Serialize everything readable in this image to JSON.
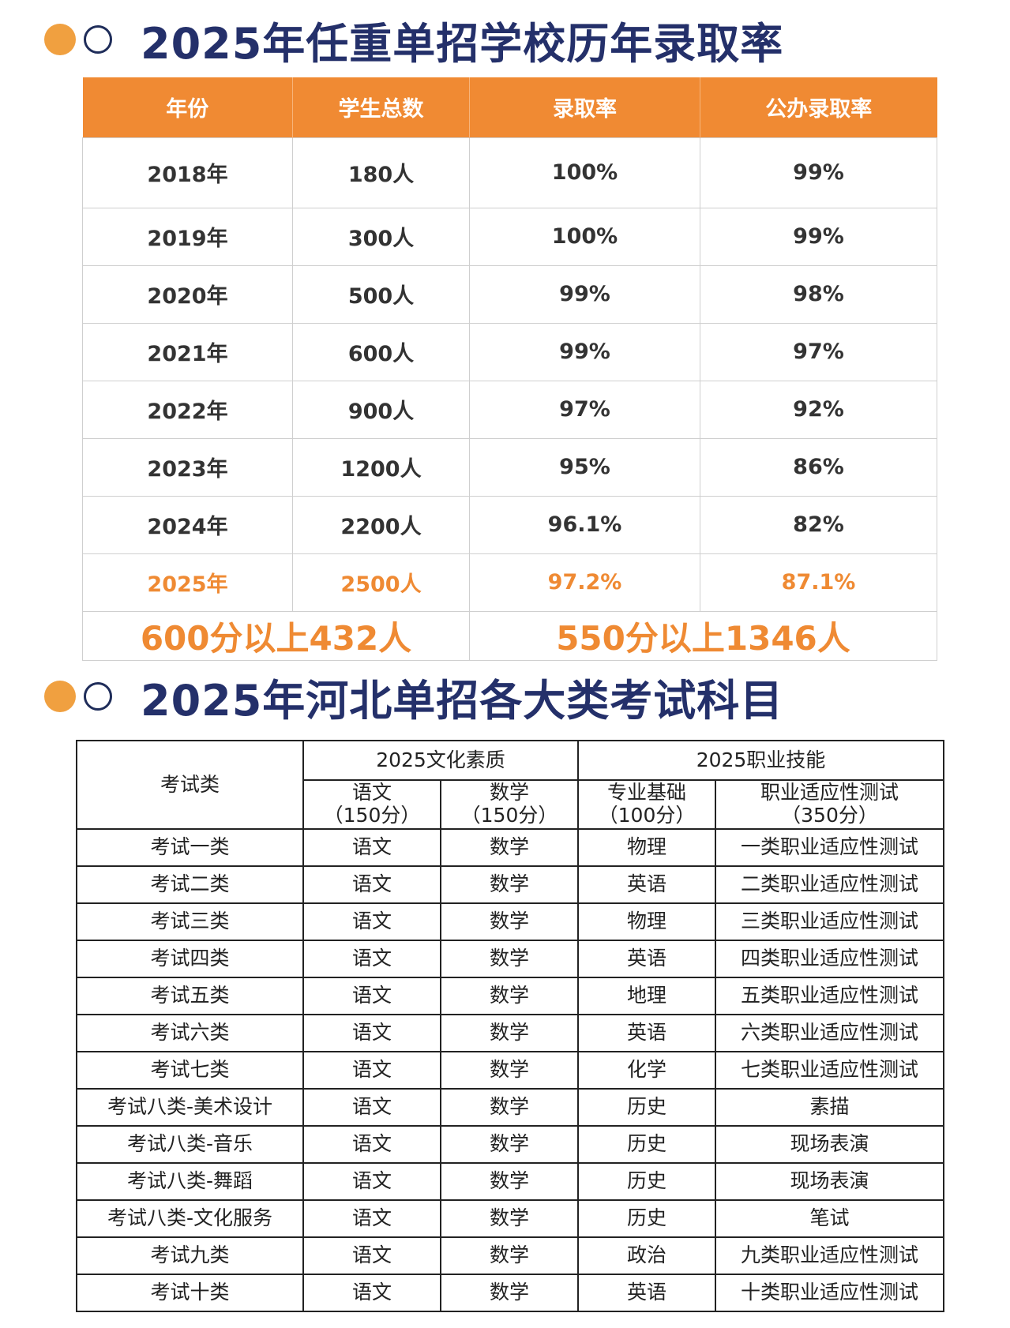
{
  "section1": {
    "title": "2025年任重单招学校历年录取率"
  },
  "table1": {
    "headers": [
      "年份",
      "学生总数",
      "录取率",
      "公办录取率"
    ],
    "rows": [
      [
        "2018年",
        "180人",
        "100%",
        "99%"
      ],
      [
        "2019年",
        "300人",
        "100%",
        "99%"
      ],
      [
        "2020年",
        "500人",
        "99%",
        "98%"
      ],
      [
        "2021年",
        "600人",
        "99%",
        "97%"
      ],
      [
        "2022年",
        "900人",
        "97%",
        "92%"
      ],
      [
        "2023年",
        "1200人",
        "95%",
        "86%"
      ],
      [
        "2024年",
        "2200人",
        "96.1%",
        "82%"
      ],
      [
        "2025年",
        "2500人",
        "97.2%",
        "87.1%"
      ]
    ],
    "summary": [
      "600分以上432人",
      "550分以上1346人"
    ]
  },
  "section2": {
    "title": "2025年河北单招各大类考试科目"
  },
  "table2": {
    "corner": "考试类",
    "group_culture": "2025文化素质",
    "group_skill": "2025职业技能",
    "subheaders": [
      {
        "name": "语文",
        "score": "（150分）"
      },
      {
        "name": "数学",
        "score": "（150分）"
      },
      {
        "name": "专业基础",
        "score": "（100分）"
      },
      {
        "name": "职业适应性测试",
        "score": "（350分）"
      }
    ],
    "rows": [
      [
        "考试一类",
        "语文",
        "数学",
        "物理",
        "一类职业适应性测试"
      ],
      [
        "考试二类",
        "语文",
        "数学",
        "英语",
        "二类职业适应性测试"
      ],
      [
        "考试三类",
        "语文",
        "数学",
        "物理",
        "三类职业适应性测试"
      ],
      [
        "考试四类",
        "语文",
        "数学",
        "英语",
        "四类职业适应性测试"
      ],
      [
        "考试五类",
        "语文",
        "数学",
        "地理",
        "五类职业适应性测试"
      ],
      [
        "考试六类",
        "语文",
        "数学",
        "英语",
        "六类职业适应性测试"
      ],
      [
        "考试七类",
        "语文",
        "数学",
        "化学",
        "七类职业适应性测试"
      ],
      [
        "考试八类-美术设计",
        "语文",
        "数学",
        "历史",
        "素描"
      ],
      [
        "考试八类-音乐",
        "语文",
        "数学",
        "历史",
        "现场表演"
      ],
      [
        "考试八类-舞蹈",
        "语文",
        "数学",
        "历史",
        "现场表演"
      ],
      [
        "考试八类-文化服务",
        "语文",
        "数学",
        "历史",
        "笔试"
      ],
      [
        "考试九类",
        "语文",
        "数学",
        "政治",
        "九类职业适应性测试"
      ],
      [
        "考试十类",
        "语文",
        "数学",
        "英语",
        "十类职业适应性测试"
      ]
    ]
  }
}
